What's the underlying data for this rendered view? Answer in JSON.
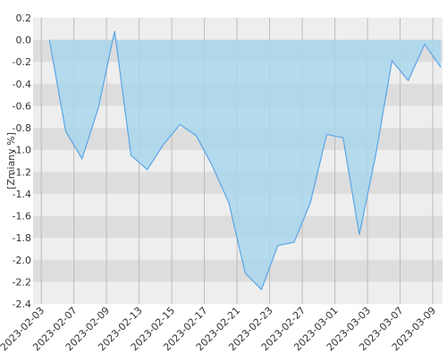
{
  "chart_data": {
    "type": "area",
    "y_label": "[Zmiany %]",
    "x": [
      0,
      1,
      2,
      3,
      4,
      5,
      6,
      7,
      8,
      9,
      10,
      11,
      12,
      13,
      14,
      15,
      16,
      17,
      18,
      19,
      20,
      21,
      22,
      23,
      24
    ],
    "series": [
      {
        "color": "#5aa5e6",
        "fill": "#a9d6ec",
        "values": [
          0.0,
          -0.83,
          -1.08,
          -0.62,
          0.08,
          -1.05,
          -1.18,
          -0.95,
          -0.77,
          -0.87,
          -1.15,
          -1.48,
          -2.12,
          -2.27,
          -1.87,
          -1.84,
          -1.48,
          -0.86,
          -0.89,
          -1.77,
          -1.05,
          -0.19,
          -0.37,
          -0.04,
          -0.25
        ]
      }
    ],
    "xlim": [
      -1,
      24.1
    ],
    "xticks": [
      {
        "value": -0.5,
        "label": "2023-02-03"
      },
      {
        "value": 1.5,
        "label": "2023-02-07"
      },
      {
        "value": 3.5,
        "label": "2023-02-09"
      },
      {
        "value": 5.5,
        "label": "2023-02-13"
      },
      {
        "value": 7.5,
        "label": "2023-02-15"
      },
      {
        "value": 9.5,
        "label": "2023-02-17"
      },
      {
        "value": 11.5,
        "label": "2023-02-21"
      },
      {
        "value": 13.5,
        "label": "2023-02-23"
      },
      {
        "value": 15.5,
        "label": "2023-02-27"
      },
      {
        "value": 17.5,
        "label": "2023-03-01"
      },
      {
        "value": 19.5,
        "label": "2023-03-03"
      },
      {
        "value": 21.5,
        "label": "2023-03-07"
      },
      {
        "value": 23.5,
        "label": "2023-03-09"
      }
    ],
    "ylim": [
      -2.4,
      0.2
    ],
    "yticks": [
      0.2,
      {
        "value": 0,
        "label": "0.0"
      },
      -0.2,
      -0.4,
      -0.6,
      -0.8,
      {
        "value": -1,
        "label": "-1.0"
      },
      -1.2,
      -1.4,
      -1.6,
      -1.8,
      {
        "value": -2,
        "label": "-2.0"
      },
      -2.2,
      -2.4
    ],
    "grid": true
  }
}
